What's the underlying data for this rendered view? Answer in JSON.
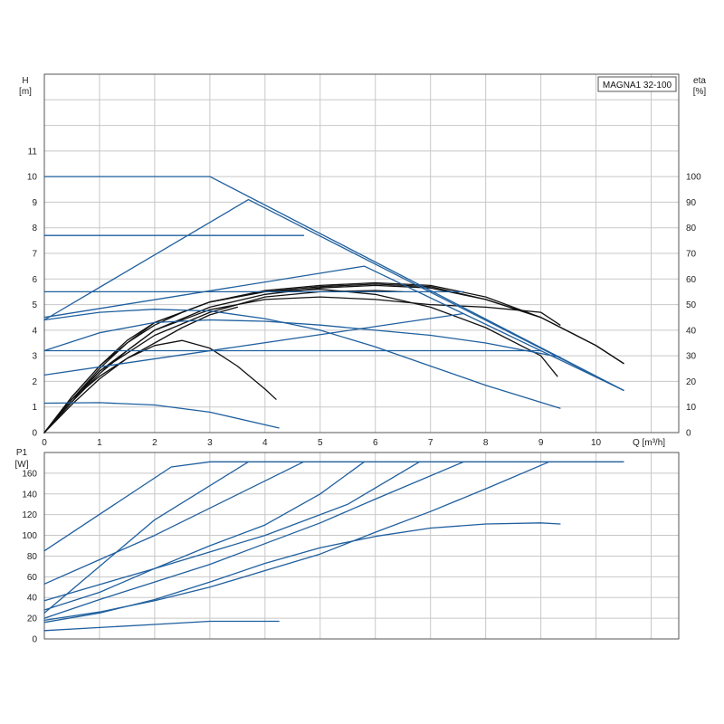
{
  "colors": {
    "blue": "#1f5f9e",
    "black": "#111111",
    "grid": "#c8c8c8",
    "frame": "#555555"
  },
  "chart_data": [
    {
      "type": "line",
      "model_label": "MAGNA1 32-100",
      "left_axis_title": [
        "H",
        "[m]"
      ],
      "right_axis_title": [
        "eta",
        "[%]"
      ],
      "x_axis_title": "Q [m³/h]",
      "xlim": [
        0,
        11.5
      ],
      "ylim": [
        0,
        14
      ],
      "eta_lim": [
        0,
        140
      ],
      "x_ticks": [
        "0",
        "1",
        "2",
        "3",
        "4",
        "5",
        "6",
        "7",
        "8",
        "9",
        "10"
      ],
      "y_ticks": [
        "0",
        "1",
        "2",
        "3",
        "4",
        "5",
        "6",
        "7",
        "8",
        "9",
        "10",
        "11"
      ],
      "eta_ticks": [
        "0",
        "10",
        "20",
        "30",
        "40",
        "50",
        "60",
        "70",
        "80",
        "90",
        "100"
      ],
      "grid": true,
      "head_curves": [
        {
          "color": "blue",
          "points": [
            [
              0,
              10
            ],
            [
              3,
              10
            ],
            [
              10.5,
              1.65
            ]
          ]
        },
        {
          "color": "blue",
          "points": [
            [
              0,
              4.4
            ],
            [
              3.7,
              9.1
            ],
            [
              10.5,
              1.65
            ]
          ]
        },
        {
          "color": "blue",
          "points": [
            [
              0,
              7.7
            ],
            [
              4.7,
              7.7
            ]
          ]
        },
        {
          "color": "blue",
          "points": [
            [
              0,
              4.5
            ],
            [
              5.8,
              6.5
            ],
            [
              10.5,
              1.65
            ]
          ]
        },
        {
          "color": "blue",
          "points": [
            [
              0,
              5.5
            ],
            [
              7.6,
              5.5
            ]
          ]
        },
        {
          "color": "blue",
          "points": [
            [
              0,
              2.25
            ],
            [
              7.6,
              4.65
            ]
          ]
        },
        {
          "color": "blue",
          "points": [
            [
              0,
              3.2
            ],
            [
              9.0,
              3.2
            ]
          ]
        },
        {
          "color": "blue",
          "points": [
            [
              0,
              4.4
            ],
            [
              1.0,
              4.7
            ],
            [
              2.0,
              4.82
            ],
            [
              3.0,
              4.75
            ],
            [
              4.0,
              4.45
            ],
            [
              5.0,
              4.0
            ],
            [
              6.0,
              3.35
            ],
            [
              7.0,
              2.6
            ],
            [
              8.0,
              1.85
            ],
            [
              9.35,
              0.95
            ]
          ]
        },
        {
          "color": "blue",
          "points": [
            [
              0,
              1.15
            ],
            [
              1.0,
              1.17
            ],
            [
              2.0,
              1.08
            ],
            [
              3.0,
              0.8
            ],
            [
              4.25,
              0.18
            ]
          ]
        },
        {
          "color": "blue",
          "points": [
            [
              0,
              3.2
            ],
            [
              1.0,
              3.9
            ],
            [
              2.0,
              4.3
            ],
            [
              3.0,
              4.4
            ],
            [
              4.0,
              4.35
            ],
            [
              5.0,
              4.2
            ],
            [
              6.0,
              4.0
            ],
            [
              7.0,
              3.8
            ],
            [
              8.0,
              3.5
            ],
            [
              9.35,
              2.95
            ]
          ]
        }
      ],
      "eta_curves": [
        {
          "color": "black",
          "points": [
            [
              0,
              0
            ],
            [
              0.5,
              13
            ],
            [
              1,
              22
            ],
            [
              1.5,
              29
            ],
            [
              2,
              34
            ],
            [
              2.5,
              36
            ],
            [
              3.0,
              33
            ],
            [
              3.5,
              26
            ],
            [
              4.0,
              17
            ],
            [
              4.2,
              13
            ]
          ]
        },
        {
          "color": "black",
          "points": [
            [
              0,
              0
            ],
            [
              0.5,
              14
            ],
            [
              1,
              26
            ],
            [
              1.5,
              35
            ],
            [
              2,
              42
            ],
            [
              2.5,
              47
            ],
            [
              3,
              51
            ],
            [
              4,
              55
            ],
            [
              5,
              56
            ],
            [
              6,
              54
            ],
            [
              7,
              49
            ],
            [
              8,
              41
            ],
            [
              9,
              30
            ],
            [
              9.3,
              22
            ]
          ]
        },
        {
          "color": "black",
          "points": [
            [
              0,
              0
            ],
            [
              0.5,
              13
            ],
            [
              1,
              25
            ],
            [
              1.5,
              35
            ],
            [
              2,
              43
            ],
            [
              3,
              51
            ],
            [
              4,
              55
            ],
            [
              5,
              57
            ],
            [
              6,
              58
            ],
            [
              7,
              57
            ],
            [
              8,
              52
            ],
            [
              9,
              45
            ],
            [
              10,
              34
            ],
            [
              10.5,
              27
            ]
          ]
        },
        {
          "color": "black",
          "points": [
            [
              0,
              0
            ],
            [
              0.5,
              14
            ],
            [
              1,
              26
            ],
            [
              1.5,
              36
            ],
            [
              2,
              43
            ],
            [
              3,
              51
            ],
            [
              4,
              55.5
            ],
            [
              5,
              57.5
            ],
            [
              6,
              58.5
            ],
            [
              7,
              57.5
            ],
            [
              8,
              53
            ],
            [
              9,
              45
            ],
            [
              10,
              34
            ],
            [
              10.5,
              27
            ]
          ]
        },
        {
          "color": "black",
          "points": [
            [
              0,
              0
            ],
            [
              0.5,
              12
            ],
            [
              1,
              23
            ],
            [
              1.5,
              32
            ],
            [
              2,
              40
            ],
            [
              3,
              49
            ],
            [
              4,
              54
            ],
            [
              5,
              56.5
            ],
            [
              6,
              57.5
            ],
            [
              7,
              56.5
            ],
            [
              8,
              52
            ],
            [
              9,
              45
            ]
          ]
        },
        {
          "color": "black",
          "points": [
            [
              0,
              0
            ],
            [
              0.5,
              12
            ],
            [
              1,
              24
            ],
            [
              2,
              40
            ],
            [
              3,
              48
            ],
            [
              4,
              52
            ],
            [
              5,
              53
            ],
            [
              6,
              52
            ],
            [
              7,
              50
            ],
            [
              8,
              49
            ],
            [
              8.5,
              48
            ],
            [
              9.0,
              47
            ],
            [
              9.35,
              42
            ]
          ]
        },
        {
          "color": "black",
          "points": [
            [
              0,
              0
            ],
            [
              0.5,
              13
            ],
            [
              1,
              24
            ],
            [
              2,
              38
            ],
            [
              3,
              47
            ],
            [
              4,
              53
            ],
            [
              5,
              55
            ],
            [
              6,
              55.5
            ],
            [
              6.5,
              55
            ]
          ]
        },
        {
          "color": "black",
          "points": [
            [
              0,
              0
            ],
            [
              0.5,
              11
            ],
            [
              1,
              21
            ],
            [
              1.5,
              29
            ],
            [
              2,
              35
            ],
            [
              2.5,
              41
            ],
            [
              3,
              46
            ],
            [
              3.5,
              49
            ]
          ]
        }
      ]
    },
    {
      "type": "line",
      "left_axis_title": [
        "P1",
        "[W]"
      ],
      "xlim": [
        0,
        11.5
      ],
      "ylim": [
        0,
        180
      ],
      "y_ticks": [
        "0",
        "20",
        "40",
        "60",
        "80",
        "100",
        "120",
        "140",
        "160"
      ],
      "grid": true,
      "power_curves": [
        {
          "color": "blue",
          "points": [
            [
              0,
              85
            ],
            [
              2.3,
              166
            ],
            [
              3.0,
              171
            ],
            [
              10.5,
              171
            ]
          ]
        },
        {
          "color": "blue",
          "points": [
            [
              0,
              25
            ],
            [
              1.0,
              70
            ],
            [
              2.0,
              115
            ],
            [
              3.7,
              171
            ]
          ]
        },
        {
          "color": "blue",
          "points": [
            [
              0,
              53
            ],
            [
              2.0,
              100
            ],
            [
              4.7,
              171
            ]
          ]
        },
        {
          "color": "blue",
          "points": [
            [
              0,
              28
            ],
            [
              1.0,
              45
            ],
            [
              2.0,
              68
            ],
            [
              3.0,
              90
            ],
            [
              4.0,
              110
            ],
            [
              5.0,
              140
            ],
            [
              5.8,
              171
            ]
          ]
        },
        {
          "color": "blue",
          "points": [
            [
              0,
              37
            ],
            [
              2.0,
              68
            ],
            [
              4.0,
              100
            ],
            [
              5.5,
              130
            ],
            [
              6.8,
              171
            ]
          ]
        },
        {
          "color": "blue",
          "points": [
            [
              0,
              20
            ],
            [
              1.0,
              38
            ],
            [
              2.0,
              55
            ],
            [
              3.0,
              72
            ],
            [
              4.0,
              92
            ],
            [
              5.0,
              112
            ],
            [
              6.0,
              135
            ],
            [
              7.6,
              171
            ]
          ]
        },
        {
          "color": "blue",
          "points": [
            [
              0,
              18
            ],
            [
              1.0,
              26
            ],
            [
              2.0,
              37
            ],
            [
              3.0,
              50
            ],
            [
              4.0,
              66
            ],
            [
              5.0,
              82
            ],
            [
              6.0,
              103
            ],
            [
              7.0,
              123
            ],
            [
              8.0,
              145
            ],
            [
              9.15,
              171
            ]
          ]
        },
        {
          "color": "blue",
          "points": [
            [
              0,
              16
            ],
            [
              1.0,
              25
            ],
            [
              2.0,
              38
            ],
            [
              3.0,
              55
            ],
            [
              4.0,
              73
            ],
            [
              5.0,
              88
            ],
            [
              6.0,
              99
            ],
            [
              7.0,
              107
            ],
            [
              8.0,
              111
            ],
            [
              9.0,
              112
            ],
            [
              9.35,
              111
            ]
          ]
        },
        {
          "color": "blue",
          "points": [
            [
              0,
              8
            ],
            [
              1.0,
              11
            ],
            [
              2.0,
              14
            ],
            [
              3.0,
              17
            ],
            [
              4.25,
              17
            ]
          ]
        }
      ]
    }
  ]
}
